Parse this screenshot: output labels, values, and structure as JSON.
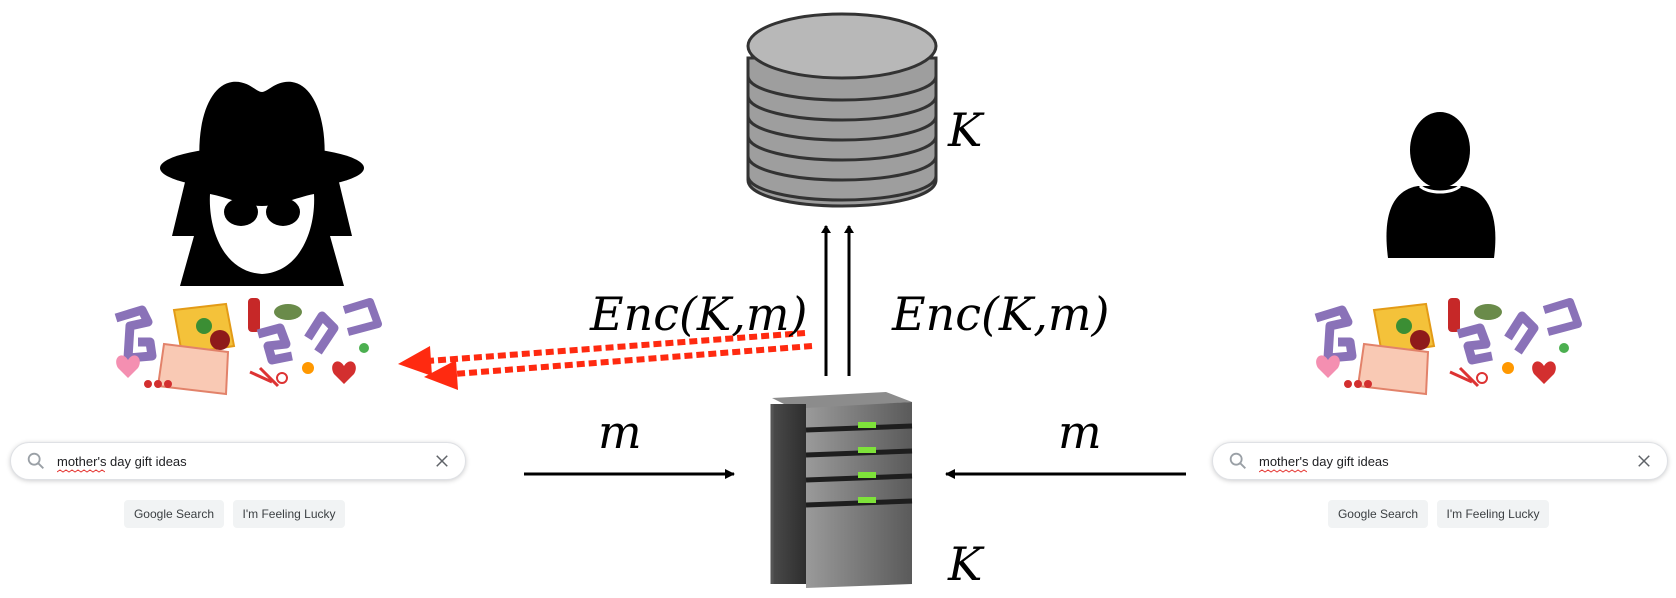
{
  "labels": {
    "key_store": "K",
    "key_server": "K",
    "enc_left": "Enc(K,m)",
    "enc_right": "Enc(K,m)",
    "msg_left": "m",
    "msg_right": "m"
  },
  "left_panel": {
    "search": {
      "query": "mother's day gift ideas",
      "placeholder": ""
    },
    "buttons": {
      "search_label": "Google Search",
      "lucky_label": "I'm Feeling Lucky"
    }
  },
  "right_panel": {
    "search": {
      "query": "mother's day gift ideas",
      "placeholder": ""
    },
    "buttons": {
      "search_label": "Google Search",
      "lucky_label": "I'm Feeling Lucky"
    }
  },
  "colors": {
    "leak_arrow": "#ff2a10",
    "database_fill": "#b8b8b8",
    "server_body": "#6e6e6e",
    "server_led": "#7ee23a",
    "doodle_purple": "#8a72b8"
  },
  "icons": {
    "adversary": "spy-icon",
    "user": "user-icon",
    "store": "database-icon",
    "server": "server-icon",
    "search": "search-icon",
    "clear": "close-icon"
  }
}
